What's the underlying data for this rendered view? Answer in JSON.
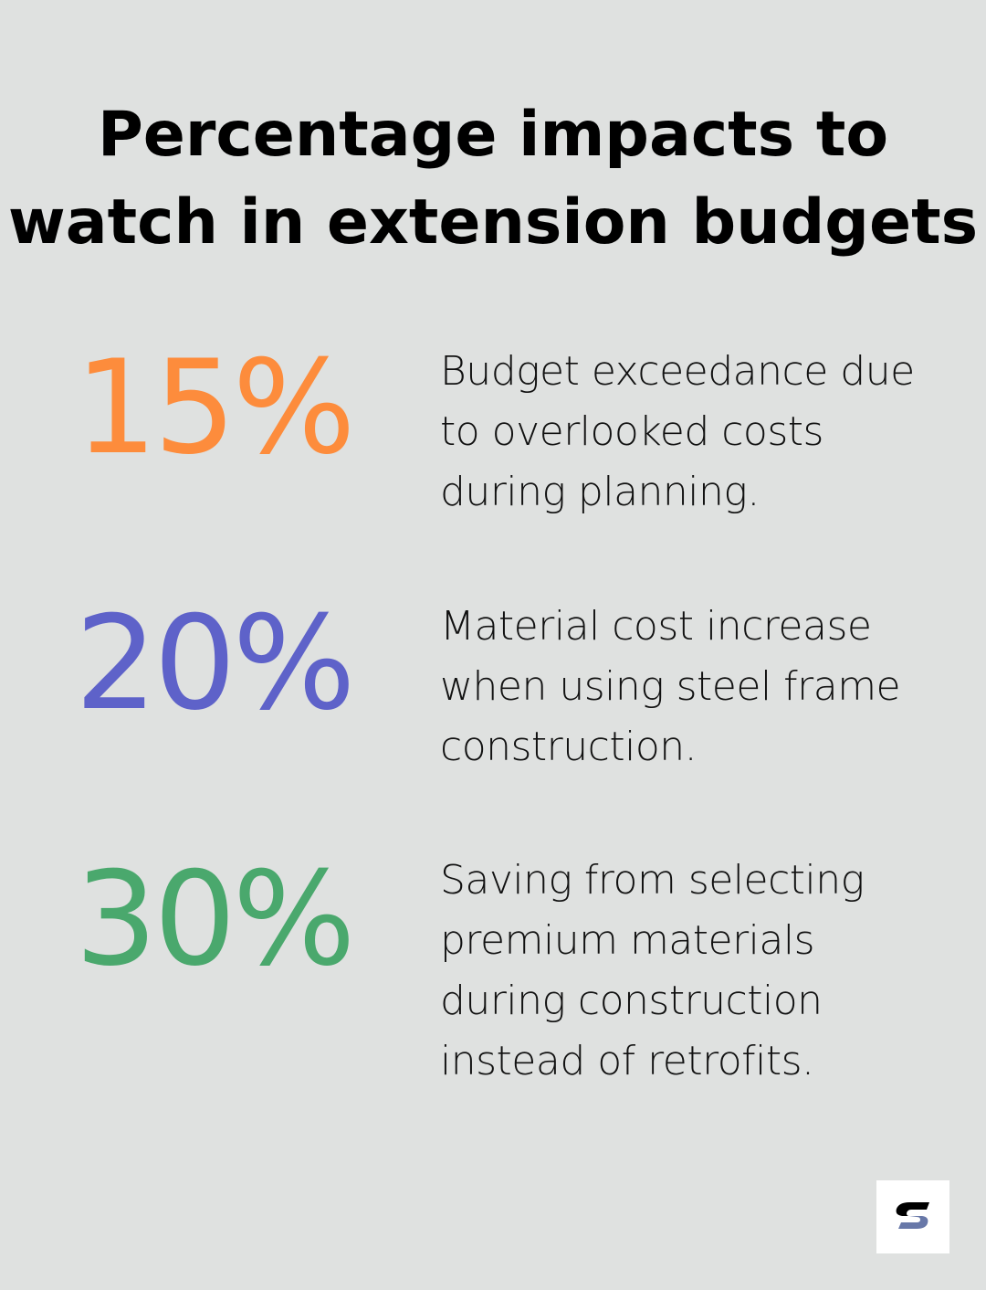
{
  "title": "Percentage impacts to watch in extension budgets",
  "colors": {
    "background": "#dfe1e0",
    "orange": "#fd8c3c",
    "blue": "#5e62c9",
    "green": "#4aa86d"
  },
  "stats": [
    {
      "value": "15%",
      "text": "Budget exceedance due to overlooked costs during planning."
    },
    {
      "value": "20%",
      "text": "Material cost increase when using steel frame construction."
    },
    {
      "value": "30%",
      "text": "Saving from selecting premium materials during construction instead of retrofits."
    }
  ],
  "logo": {
    "icon": "s-logo-icon"
  }
}
